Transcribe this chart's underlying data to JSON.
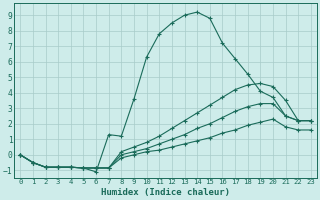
{
  "xlabel": "Humidex (Indice chaleur)",
  "xlim_min": -0.5,
  "xlim_max": 23.5,
  "ylim_min": -1.5,
  "ylim_max": 9.8,
  "yticks": [
    -1,
    0,
    1,
    2,
    3,
    4,
    5,
    6,
    7,
    8,
    9
  ],
  "xticks": [
    0,
    1,
    2,
    3,
    4,
    5,
    6,
    7,
    8,
    9,
    10,
    11,
    12,
    13,
    14,
    15,
    16,
    17,
    18,
    19,
    20,
    21,
    22,
    23
  ],
  "background_color": "#ceecea",
  "line_color": "#1a6b5a",
  "grid_color": "#a8ccc9",
  "lines": [
    [
      0.0,
      -0.5,
      -0.8,
      -0.8,
      -0.8,
      -0.85,
      -1.1,
      1.3,
      1.2,
      3.6,
      6.3,
      7.8,
      8.5,
      9.0,
      9.2,
      8.8,
      7.2,
      6.2,
      5.2,
      4.1,
      3.7,
      2.5,
      2.2,
      2.2
    ],
    [
      0.0,
      -0.5,
      -0.8,
      -0.8,
      -0.8,
      -0.85,
      -0.85,
      -0.85,
      0.2,
      0.5,
      0.8,
      1.2,
      1.7,
      2.2,
      2.7,
      3.2,
      3.7,
      4.2,
      4.5,
      4.6,
      4.4,
      3.5,
      2.2,
      2.2
    ],
    [
      0.0,
      -0.5,
      -0.8,
      -0.8,
      -0.8,
      -0.85,
      -0.85,
      -0.85,
      0.0,
      0.2,
      0.4,
      0.7,
      1.0,
      1.3,
      1.7,
      2.0,
      2.4,
      2.8,
      3.1,
      3.3,
      3.3,
      2.5,
      2.2,
      2.2
    ],
    [
      0.0,
      -0.5,
      -0.8,
      -0.8,
      -0.8,
      -0.85,
      -0.85,
      -0.85,
      -0.2,
      0.0,
      0.2,
      0.3,
      0.5,
      0.7,
      0.9,
      1.1,
      1.4,
      1.6,
      1.9,
      2.1,
      2.3,
      1.8,
      1.6,
      1.6
    ]
  ]
}
